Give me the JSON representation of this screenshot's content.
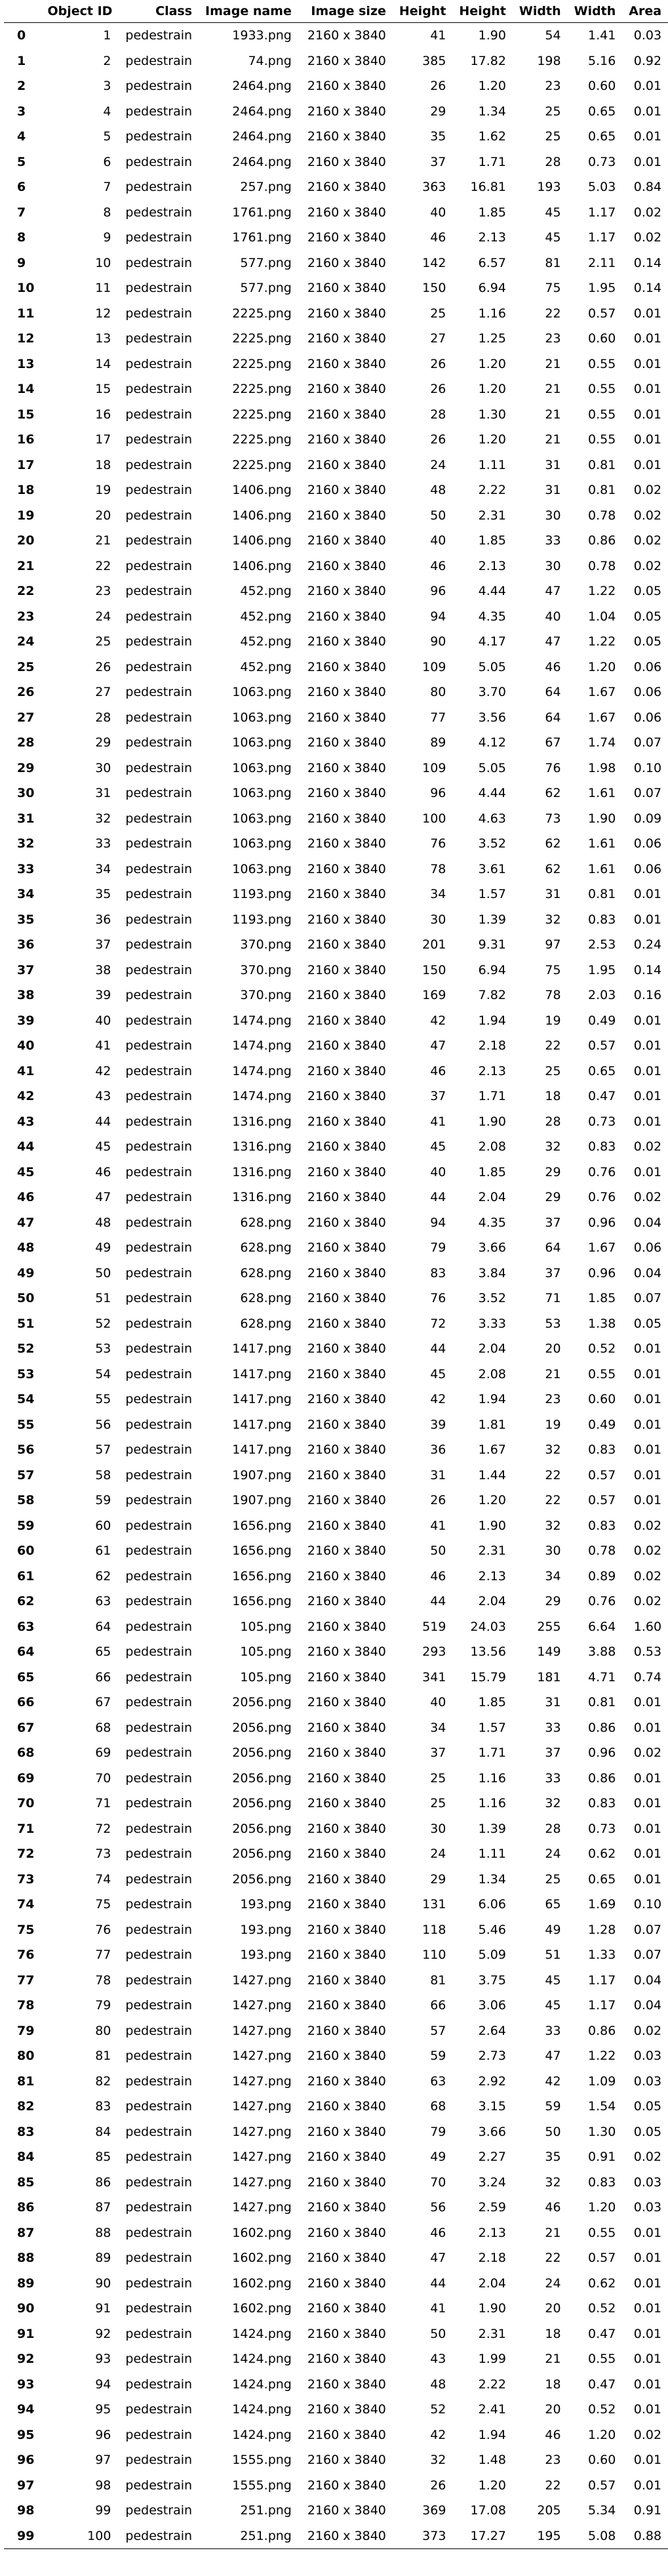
{
  "table": {
    "columns": [
      "",
      "Object ID",
      "Class",
      "Image name",
      "Image size",
      "Height",
      "Height",
      "Width",
      "Width",
      "Area"
    ],
    "rows": [
      [
        "0",
        "1",
        "pedestrain",
        "1933.png",
        "2160 x 3840",
        "41",
        "1.90",
        "54",
        "1.41",
        "0.03"
      ],
      [
        "1",
        "2",
        "pedestrain",
        "74.png",
        "2160 x 3840",
        "385",
        "17.82",
        "198",
        "5.16",
        "0.92"
      ],
      [
        "2",
        "3",
        "pedestrain",
        "2464.png",
        "2160 x 3840",
        "26",
        "1.20",
        "23",
        "0.60",
        "0.01"
      ],
      [
        "3",
        "4",
        "pedestrain",
        "2464.png",
        "2160 x 3840",
        "29",
        "1.34",
        "25",
        "0.65",
        "0.01"
      ],
      [
        "4",
        "5",
        "pedestrain",
        "2464.png",
        "2160 x 3840",
        "35",
        "1.62",
        "25",
        "0.65",
        "0.01"
      ],
      [
        "5",
        "6",
        "pedestrain",
        "2464.png",
        "2160 x 3840",
        "37",
        "1.71",
        "28",
        "0.73",
        "0.01"
      ],
      [
        "6",
        "7",
        "pedestrain",
        "257.png",
        "2160 x 3840",
        "363",
        "16.81",
        "193",
        "5.03",
        "0.84"
      ],
      [
        "7",
        "8",
        "pedestrain",
        "1761.png",
        "2160 x 3840",
        "40",
        "1.85",
        "45",
        "1.17",
        "0.02"
      ],
      [
        "8",
        "9",
        "pedestrain",
        "1761.png",
        "2160 x 3840",
        "46",
        "2.13",
        "45",
        "1.17",
        "0.02"
      ],
      [
        "9",
        "10",
        "pedestrain",
        "577.png",
        "2160 x 3840",
        "142",
        "6.57",
        "81",
        "2.11",
        "0.14"
      ],
      [
        "10",
        "11",
        "pedestrain",
        "577.png",
        "2160 x 3840",
        "150",
        "6.94",
        "75",
        "1.95",
        "0.14"
      ],
      [
        "11",
        "12",
        "pedestrain",
        "2225.png",
        "2160 x 3840",
        "25",
        "1.16",
        "22",
        "0.57",
        "0.01"
      ],
      [
        "12",
        "13",
        "pedestrain",
        "2225.png",
        "2160 x 3840",
        "27",
        "1.25",
        "23",
        "0.60",
        "0.01"
      ],
      [
        "13",
        "14",
        "pedestrain",
        "2225.png",
        "2160 x 3840",
        "26",
        "1.20",
        "21",
        "0.55",
        "0.01"
      ],
      [
        "14",
        "15",
        "pedestrain",
        "2225.png",
        "2160 x 3840",
        "26",
        "1.20",
        "21",
        "0.55",
        "0.01"
      ],
      [
        "15",
        "16",
        "pedestrain",
        "2225.png",
        "2160 x 3840",
        "28",
        "1.30",
        "21",
        "0.55",
        "0.01"
      ],
      [
        "16",
        "17",
        "pedestrain",
        "2225.png",
        "2160 x 3840",
        "26",
        "1.20",
        "21",
        "0.55",
        "0.01"
      ],
      [
        "17",
        "18",
        "pedestrain",
        "2225.png",
        "2160 x 3840",
        "24",
        "1.11",
        "31",
        "0.81",
        "0.01"
      ],
      [
        "18",
        "19",
        "pedestrain",
        "1406.png",
        "2160 x 3840",
        "48",
        "2.22",
        "31",
        "0.81",
        "0.02"
      ],
      [
        "19",
        "20",
        "pedestrain",
        "1406.png",
        "2160 x 3840",
        "50",
        "2.31",
        "30",
        "0.78",
        "0.02"
      ],
      [
        "20",
        "21",
        "pedestrain",
        "1406.png",
        "2160 x 3840",
        "40",
        "1.85",
        "33",
        "0.86",
        "0.02"
      ],
      [
        "21",
        "22",
        "pedestrain",
        "1406.png",
        "2160 x 3840",
        "46",
        "2.13",
        "30",
        "0.78",
        "0.02"
      ],
      [
        "22",
        "23",
        "pedestrain",
        "452.png",
        "2160 x 3840",
        "96",
        "4.44",
        "47",
        "1.22",
        "0.05"
      ],
      [
        "23",
        "24",
        "pedestrain",
        "452.png",
        "2160 x 3840",
        "94",
        "4.35",
        "40",
        "1.04",
        "0.05"
      ],
      [
        "24",
        "25",
        "pedestrain",
        "452.png",
        "2160 x 3840",
        "90",
        "4.17",
        "47",
        "1.22",
        "0.05"
      ],
      [
        "25",
        "26",
        "pedestrain",
        "452.png",
        "2160 x 3840",
        "109",
        "5.05",
        "46",
        "1.20",
        "0.06"
      ],
      [
        "26",
        "27",
        "pedestrain",
        "1063.png",
        "2160 x 3840",
        "80",
        "3.70",
        "64",
        "1.67",
        "0.06"
      ],
      [
        "27",
        "28",
        "pedestrain",
        "1063.png",
        "2160 x 3840",
        "77",
        "3.56",
        "64",
        "1.67",
        "0.06"
      ],
      [
        "28",
        "29",
        "pedestrain",
        "1063.png",
        "2160 x 3840",
        "89",
        "4.12",
        "67",
        "1.74",
        "0.07"
      ],
      [
        "29",
        "30",
        "pedestrain",
        "1063.png",
        "2160 x 3840",
        "109",
        "5.05",
        "76",
        "1.98",
        "0.10"
      ],
      [
        "30",
        "31",
        "pedestrain",
        "1063.png",
        "2160 x 3840",
        "96",
        "4.44",
        "62",
        "1.61",
        "0.07"
      ],
      [
        "31",
        "32",
        "pedestrain",
        "1063.png",
        "2160 x 3840",
        "100",
        "4.63",
        "73",
        "1.90",
        "0.09"
      ],
      [
        "32",
        "33",
        "pedestrain",
        "1063.png",
        "2160 x 3840",
        "76",
        "3.52",
        "62",
        "1.61",
        "0.06"
      ],
      [
        "33",
        "34",
        "pedestrain",
        "1063.png",
        "2160 x 3840",
        "78",
        "3.61",
        "62",
        "1.61",
        "0.06"
      ],
      [
        "34",
        "35",
        "pedestrain",
        "1193.png",
        "2160 x 3840",
        "34",
        "1.57",
        "31",
        "0.81",
        "0.01"
      ],
      [
        "35",
        "36",
        "pedestrain",
        "1193.png",
        "2160 x 3840",
        "30",
        "1.39",
        "32",
        "0.83",
        "0.01"
      ],
      [
        "36",
        "37",
        "pedestrain",
        "370.png",
        "2160 x 3840",
        "201",
        "9.31",
        "97",
        "2.53",
        "0.24"
      ],
      [
        "37",
        "38",
        "pedestrain",
        "370.png",
        "2160 x 3840",
        "150",
        "6.94",
        "75",
        "1.95",
        "0.14"
      ],
      [
        "38",
        "39",
        "pedestrain",
        "370.png",
        "2160 x 3840",
        "169",
        "7.82",
        "78",
        "2.03",
        "0.16"
      ],
      [
        "39",
        "40",
        "pedestrain",
        "1474.png",
        "2160 x 3840",
        "42",
        "1.94",
        "19",
        "0.49",
        "0.01"
      ],
      [
        "40",
        "41",
        "pedestrain",
        "1474.png",
        "2160 x 3840",
        "47",
        "2.18",
        "22",
        "0.57",
        "0.01"
      ],
      [
        "41",
        "42",
        "pedestrain",
        "1474.png",
        "2160 x 3840",
        "46",
        "2.13",
        "25",
        "0.65",
        "0.01"
      ],
      [
        "42",
        "43",
        "pedestrain",
        "1474.png",
        "2160 x 3840",
        "37",
        "1.71",
        "18",
        "0.47",
        "0.01"
      ],
      [
        "43",
        "44",
        "pedestrain",
        "1316.png",
        "2160 x 3840",
        "41",
        "1.90",
        "28",
        "0.73",
        "0.01"
      ],
      [
        "44",
        "45",
        "pedestrain",
        "1316.png",
        "2160 x 3840",
        "45",
        "2.08",
        "32",
        "0.83",
        "0.02"
      ],
      [
        "45",
        "46",
        "pedestrain",
        "1316.png",
        "2160 x 3840",
        "40",
        "1.85",
        "29",
        "0.76",
        "0.01"
      ],
      [
        "46",
        "47",
        "pedestrain",
        "1316.png",
        "2160 x 3840",
        "44",
        "2.04",
        "29",
        "0.76",
        "0.02"
      ],
      [
        "47",
        "48",
        "pedestrain",
        "628.png",
        "2160 x 3840",
        "94",
        "4.35",
        "37",
        "0.96",
        "0.04"
      ],
      [
        "48",
        "49",
        "pedestrain",
        "628.png",
        "2160 x 3840",
        "79",
        "3.66",
        "64",
        "1.67",
        "0.06"
      ],
      [
        "49",
        "50",
        "pedestrain",
        "628.png",
        "2160 x 3840",
        "83",
        "3.84",
        "37",
        "0.96",
        "0.04"
      ],
      [
        "50",
        "51",
        "pedestrain",
        "628.png",
        "2160 x 3840",
        "76",
        "3.52",
        "71",
        "1.85",
        "0.07"
      ],
      [
        "51",
        "52",
        "pedestrain",
        "628.png",
        "2160 x 3840",
        "72",
        "3.33",
        "53",
        "1.38",
        "0.05"
      ],
      [
        "52",
        "53",
        "pedestrain",
        "1417.png",
        "2160 x 3840",
        "44",
        "2.04",
        "20",
        "0.52",
        "0.01"
      ],
      [
        "53",
        "54",
        "pedestrain",
        "1417.png",
        "2160 x 3840",
        "45",
        "2.08",
        "21",
        "0.55",
        "0.01"
      ],
      [
        "54",
        "55",
        "pedestrain",
        "1417.png",
        "2160 x 3840",
        "42",
        "1.94",
        "23",
        "0.60",
        "0.01"
      ],
      [
        "55",
        "56",
        "pedestrain",
        "1417.png",
        "2160 x 3840",
        "39",
        "1.81",
        "19",
        "0.49",
        "0.01"
      ],
      [
        "56",
        "57",
        "pedestrain",
        "1417.png",
        "2160 x 3840",
        "36",
        "1.67",
        "32",
        "0.83",
        "0.01"
      ],
      [
        "57",
        "58",
        "pedestrain",
        "1907.png",
        "2160 x 3840",
        "31",
        "1.44",
        "22",
        "0.57",
        "0.01"
      ],
      [
        "58",
        "59",
        "pedestrain",
        "1907.png",
        "2160 x 3840",
        "26",
        "1.20",
        "22",
        "0.57",
        "0.01"
      ],
      [
        "59",
        "60",
        "pedestrain",
        "1656.png",
        "2160 x 3840",
        "41",
        "1.90",
        "32",
        "0.83",
        "0.02"
      ],
      [
        "60",
        "61",
        "pedestrain",
        "1656.png",
        "2160 x 3840",
        "50",
        "2.31",
        "30",
        "0.78",
        "0.02"
      ],
      [
        "61",
        "62",
        "pedestrain",
        "1656.png",
        "2160 x 3840",
        "46",
        "2.13",
        "34",
        "0.89",
        "0.02"
      ],
      [
        "62",
        "63",
        "pedestrain",
        "1656.png",
        "2160 x 3840",
        "44",
        "2.04",
        "29",
        "0.76",
        "0.02"
      ],
      [
        "63",
        "64",
        "pedestrain",
        "105.png",
        "2160 x 3840",
        "519",
        "24.03",
        "255",
        "6.64",
        "1.60"
      ],
      [
        "64",
        "65",
        "pedestrain",
        "105.png",
        "2160 x 3840",
        "293",
        "13.56",
        "149",
        "3.88",
        "0.53"
      ],
      [
        "65",
        "66",
        "pedestrain",
        "105.png",
        "2160 x 3840",
        "341",
        "15.79",
        "181",
        "4.71",
        "0.74"
      ],
      [
        "66",
        "67",
        "pedestrain",
        "2056.png",
        "2160 x 3840",
        "40",
        "1.85",
        "31",
        "0.81",
        "0.01"
      ],
      [
        "67",
        "68",
        "pedestrain",
        "2056.png",
        "2160 x 3840",
        "34",
        "1.57",
        "33",
        "0.86",
        "0.01"
      ],
      [
        "68",
        "69",
        "pedestrain",
        "2056.png",
        "2160 x 3840",
        "37",
        "1.71",
        "37",
        "0.96",
        "0.02"
      ],
      [
        "69",
        "70",
        "pedestrain",
        "2056.png",
        "2160 x 3840",
        "25",
        "1.16",
        "33",
        "0.86",
        "0.01"
      ],
      [
        "70",
        "71",
        "pedestrain",
        "2056.png",
        "2160 x 3840",
        "25",
        "1.16",
        "32",
        "0.83",
        "0.01"
      ],
      [
        "71",
        "72",
        "pedestrain",
        "2056.png",
        "2160 x 3840",
        "30",
        "1.39",
        "28",
        "0.73",
        "0.01"
      ],
      [
        "72",
        "73",
        "pedestrain",
        "2056.png",
        "2160 x 3840",
        "24",
        "1.11",
        "24",
        "0.62",
        "0.01"
      ],
      [
        "73",
        "74",
        "pedestrain",
        "2056.png",
        "2160 x 3840",
        "29",
        "1.34",
        "25",
        "0.65",
        "0.01"
      ],
      [
        "74",
        "75",
        "pedestrain",
        "193.png",
        "2160 x 3840",
        "131",
        "6.06",
        "65",
        "1.69",
        "0.10"
      ],
      [
        "75",
        "76",
        "pedestrain",
        "193.png",
        "2160 x 3840",
        "118",
        "5.46",
        "49",
        "1.28",
        "0.07"
      ],
      [
        "76",
        "77",
        "pedestrain",
        "193.png",
        "2160 x 3840",
        "110",
        "5.09",
        "51",
        "1.33",
        "0.07"
      ],
      [
        "77",
        "78",
        "pedestrain",
        "1427.png",
        "2160 x 3840",
        "81",
        "3.75",
        "45",
        "1.17",
        "0.04"
      ],
      [
        "78",
        "79",
        "pedestrain",
        "1427.png",
        "2160 x 3840",
        "66",
        "3.06",
        "45",
        "1.17",
        "0.04"
      ],
      [
        "79",
        "80",
        "pedestrain",
        "1427.png",
        "2160 x 3840",
        "57",
        "2.64",
        "33",
        "0.86",
        "0.02"
      ],
      [
        "80",
        "81",
        "pedestrain",
        "1427.png",
        "2160 x 3840",
        "59",
        "2.73",
        "47",
        "1.22",
        "0.03"
      ],
      [
        "81",
        "82",
        "pedestrain",
        "1427.png",
        "2160 x 3840",
        "63",
        "2.92",
        "42",
        "1.09",
        "0.03"
      ],
      [
        "82",
        "83",
        "pedestrain",
        "1427.png",
        "2160 x 3840",
        "68",
        "3.15",
        "59",
        "1.54",
        "0.05"
      ],
      [
        "83",
        "84",
        "pedestrain",
        "1427.png",
        "2160 x 3840",
        "79",
        "3.66",
        "50",
        "1.30",
        "0.05"
      ],
      [
        "84",
        "85",
        "pedestrain",
        "1427.png",
        "2160 x 3840",
        "49",
        "2.27",
        "35",
        "0.91",
        "0.02"
      ],
      [
        "85",
        "86",
        "pedestrain",
        "1427.png",
        "2160 x 3840",
        "70",
        "3.24",
        "32",
        "0.83",
        "0.03"
      ],
      [
        "86",
        "87",
        "pedestrain",
        "1427.png",
        "2160 x 3840",
        "56",
        "2.59",
        "46",
        "1.20",
        "0.03"
      ],
      [
        "87",
        "88",
        "pedestrain",
        "1602.png",
        "2160 x 3840",
        "46",
        "2.13",
        "21",
        "0.55",
        "0.01"
      ],
      [
        "88",
        "89",
        "pedestrain",
        "1602.png",
        "2160 x 3840",
        "47",
        "2.18",
        "22",
        "0.57",
        "0.01"
      ],
      [
        "89",
        "90",
        "pedestrain",
        "1602.png",
        "2160 x 3840",
        "44",
        "2.04",
        "24",
        "0.62",
        "0.01"
      ],
      [
        "90",
        "91",
        "pedestrain",
        "1602.png",
        "2160 x 3840",
        "41",
        "1.90",
        "20",
        "0.52",
        "0.01"
      ],
      [
        "91",
        "92",
        "pedestrain",
        "1424.png",
        "2160 x 3840",
        "50",
        "2.31",
        "18",
        "0.47",
        "0.01"
      ],
      [
        "92",
        "93",
        "pedestrain",
        "1424.png",
        "2160 x 3840",
        "43",
        "1.99",
        "21",
        "0.55",
        "0.01"
      ],
      [
        "93",
        "94",
        "pedestrain",
        "1424.png",
        "2160 x 3840",
        "48",
        "2.22",
        "18",
        "0.47",
        "0.01"
      ],
      [
        "94",
        "95",
        "pedestrain",
        "1424.png",
        "2160 x 3840",
        "52",
        "2.41",
        "20",
        "0.52",
        "0.01"
      ],
      [
        "95",
        "96",
        "pedestrain",
        "1424.png",
        "2160 x 3840",
        "42",
        "1.94",
        "46",
        "1.20",
        "0.02"
      ],
      [
        "96",
        "97",
        "pedestrain",
        "1555.png",
        "2160 x 3840",
        "32",
        "1.48",
        "23",
        "0.60",
        "0.01"
      ],
      [
        "97",
        "98",
        "pedestrain",
        "1555.png",
        "2160 x 3840",
        "26",
        "1.20",
        "22",
        "0.57",
        "0.01"
      ],
      [
        "98",
        "99",
        "pedestrain",
        "251.png",
        "2160 x 3840",
        "369",
        "17.08",
        "205",
        "5.34",
        "0.91"
      ],
      [
        "99",
        "100",
        "pedestrain",
        "251.png",
        "2160 x 3840",
        "373",
        "17.27",
        "195",
        "5.08",
        "0.88"
      ]
    ]
  }
}
